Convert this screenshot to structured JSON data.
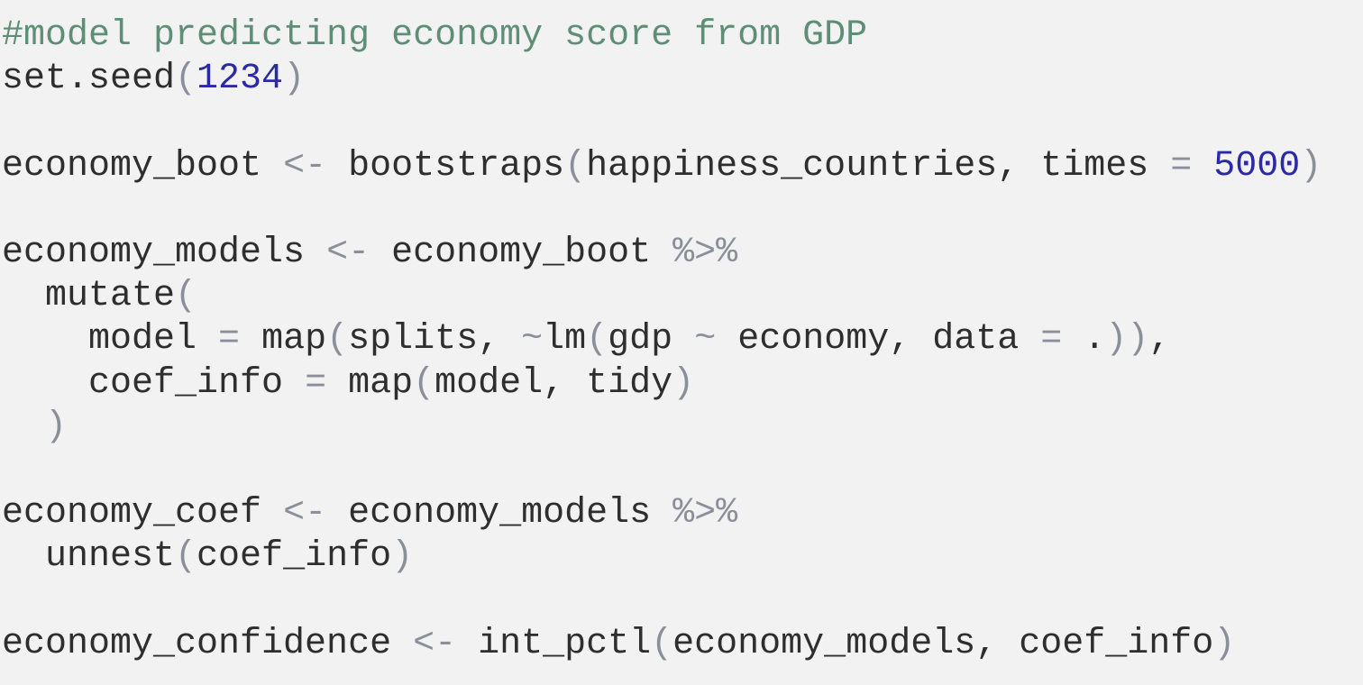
{
  "colors": {
    "background": "#f2f2f2",
    "default": "#2e2e2e",
    "comment": "#5e8f76",
    "number": "#2a2aa6",
    "punct": "#8a8f99"
  },
  "lines": [
    [
      {
        "t": "#model predicting economy score from GDP",
        "k": "comment"
      }
    ],
    [
      {
        "t": "set.seed",
        "k": "default"
      },
      {
        "t": "(",
        "k": "punct"
      },
      {
        "t": "1234",
        "k": "number"
      },
      {
        "t": ")",
        "k": "punct"
      }
    ],
    [],
    [
      {
        "t": "economy_boot ",
        "k": "default"
      },
      {
        "t": "<-",
        "k": "punct"
      },
      {
        "t": " bootstraps",
        "k": "default"
      },
      {
        "t": "(",
        "k": "punct"
      },
      {
        "t": "happiness_countries, times ",
        "k": "default"
      },
      {
        "t": "=",
        "k": "punct"
      },
      {
        "t": " ",
        "k": "default"
      },
      {
        "t": "5000",
        "k": "number"
      },
      {
        "t": ")",
        "k": "punct"
      }
    ],
    [],
    [
      {
        "t": "economy_models ",
        "k": "default"
      },
      {
        "t": "<-",
        "k": "punct"
      },
      {
        "t": " economy_boot ",
        "k": "default"
      },
      {
        "t": "%>%",
        "k": "punct"
      }
    ],
    [
      {
        "t": "  mutate",
        "k": "default"
      },
      {
        "t": "(",
        "k": "punct"
      }
    ],
    [
      {
        "t": "    model ",
        "k": "default"
      },
      {
        "t": "=",
        "k": "punct"
      },
      {
        "t": " map",
        "k": "default"
      },
      {
        "t": "(",
        "k": "punct"
      },
      {
        "t": "splits, ",
        "k": "default"
      },
      {
        "t": "~",
        "k": "punct"
      },
      {
        "t": "lm",
        "k": "default"
      },
      {
        "t": "(",
        "k": "punct"
      },
      {
        "t": "gdp ",
        "k": "default"
      },
      {
        "t": "~",
        "k": "punct"
      },
      {
        "t": " economy, data ",
        "k": "default"
      },
      {
        "t": "=",
        "k": "punct"
      },
      {
        "t": " .",
        "k": "default"
      },
      {
        "t": "))",
        "k": "punct"
      },
      {
        "t": ",",
        "k": "default"
      }
    ],
    [
      {
        "t": "    coef_info ",
        "k": "default"
      },
      {
        "t": "=",
        "k": "punct"
      },
      {
        "t": " map",
        "k": "default"
      },
      {
        "t": "(",
        "k": "punct"
      },
      {
        "t": "model, tidy",
        "k": "default"
      },
      {
        "t": ")",
        "k": "punct"
      }
    ],
    [
      {
        "t": "  ",
        "k": "default"
      },
      {
        "t": ")",
        "k": "punct"
      }
    ],
    [],
    [
      {
        "t": "economy_coef ",
        "k": "default"
      },
      {
        "t": "<-",
        "k": "punct"
      },
      {
        "t": " economy_models ",
        "k": "default"
      },
      {
        "t": "%>%",
        "k": "punct"
      }
    ],
    [
      {
        "t": "  unnest",
        "k": "default"
      },
      {
        "t": "(",
        "k": "punct"
      },
      {
        "t": "coef_info",
        "k": "default"
      },
      {
        "t": ")",
        "k": "punct"
      }
    ],
    [],
    [
      {
        "t": "economy_confidence ",
        "k": "default"
      },
      {
        "t": "<-",
        "k": "punct"
      },
      {
        "t": " int_pctl",
        "k": "default"
      },
      {
        "t": "(",
        "k": "punct"
      },
      {
        "t": "economy_models, coef_info",
        "k": "default"
      },
      {
        "t": ")",
        "k": "punct"
      }
    ]
  ]
}
